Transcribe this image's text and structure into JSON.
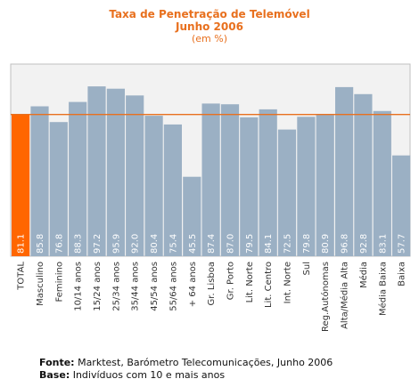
{
  "chart_data": {
    "type": "bar",
    "title_line1": "Taxa de Penetração de Telemóvel",
    "title_line2": "Junho 2006",
    "subtitle": "(em %)",
    "categories": [
      "TOTAL",
      "Masculino",
      "Feminino",
      "10/14 anos",
      "15/24 anos",
      "25/34 anos",
      "35/44 anos",
      "45/54 anos",
      "55/64 anos",
      "+ 64 anos",
      "Gr. Lisboa",
      "Gr. Porto",
      "Lit. Norte",
      "Lit. Centro",
      "Int. Norte",
      "Sul",
      "Reg.Autónomas",
      "Alta/Média Alta",
      "Média",
      "Média Baixa",
      "Baixa"
    ],
    "values": [
      81.1,
      85.8,
      76.8,
      88.3,
      97.2,
      95.9,
      92.0,
      80.4,
      75.4,
      45.5,
      87.4,
      87.0,
      79.5,
      84.1,
      72.5,
      79.8,
      80.9,
      96.8,
      92.8,
      83.1,
      57.7
    ],
    "value_labels": [
      "81.1",
      "85.8",
      "76.8",
      "88.3",
      "97.2",
      "95.9",
      "92.0",
      "80.4",
      "75.4",
      "45.5",
      "87.4",
      "87.0",
      "79.5",
      "84.1",
      "72.5",
      "79.8",
      "80.9",
      "96.8",
      "92.8",
      "83.1",
      "57.7"
    ],
    "reference_line": 81.1,
    "highlight_index": 0,
    "ylim": [
      0,
      110
    ],
    "grid": false,
    "colors": {
      "bar": "#9bb0c4",
      "highlight": "#ff6600",
      "reference": "#e8701e",
      "plot_bg": "#f2f2f2",
      "plot_border": "#c0c0c0"
    }
  },
  "footer": {
    "source_label": "Fonte:",
    "source_text": " Marktest, Barómetro Telecomunicações, Junho 2006",
    "base_label": "Base:",
    "base_text": " Indivíduos com 10 e mais anos"
  }
}
